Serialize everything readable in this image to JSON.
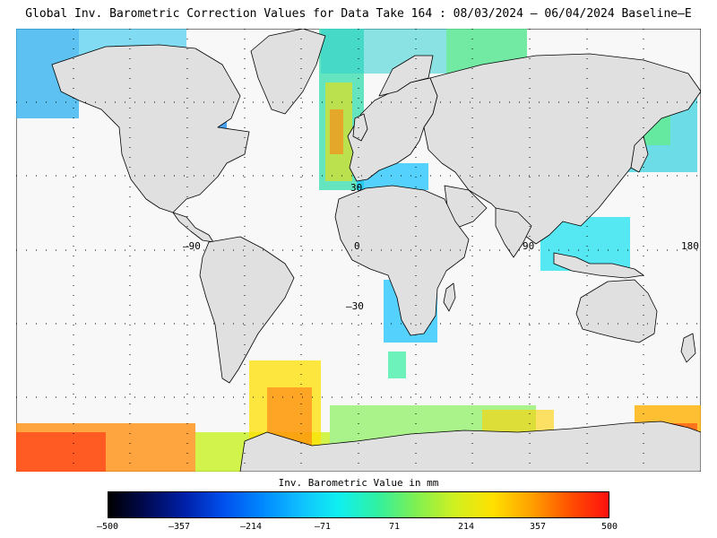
{
  "title": "Global Inv. Barometric Correction Values for Data Take 164 : 08/03/2024 – 06/04/2024 Baseline–E",
  "map": {
    "ocean_color": "#f8f8f8",
    "land_color": "#e0e0e0",
    "grid_labels": {
      "lon": [
        {
          "value": -90,
          "text": "–90"
        },
        {
          "value": 0,
          "text": "0"
        },
        {
          "value": 90,
          "text": "90"
        },
        {
          "value": 180,
          "text": "180"
        }
      ],
      "lat": [
        {
          "value": 30,
          "text": "30"
        },
        {
          "value": -30,
          "text": "–30"
        }
      ]
    }
  },
  "colorbar": {
    "label": "Inv. Barometric Value in mm",
    "min": -500,
    "max": 500,
    "ticks": [
      "–500",
      "–357",
      "–214",
      "–71",
      "71",
      "214",
      "357",
      "500"
    ],
    "colors": [
      "#000000",
      "#000a55",
      "#0020aa",
      "#0050ee",
      "#0088ff",
      "#10c0ff",
      "#10f0f0",
      "#30f0a0",
      "#80f050",
      "#d0f020",
      "#ffe000",
      "#ffa000",
      "#ff5000",
      "#ff1010"
    ]
  }
}
